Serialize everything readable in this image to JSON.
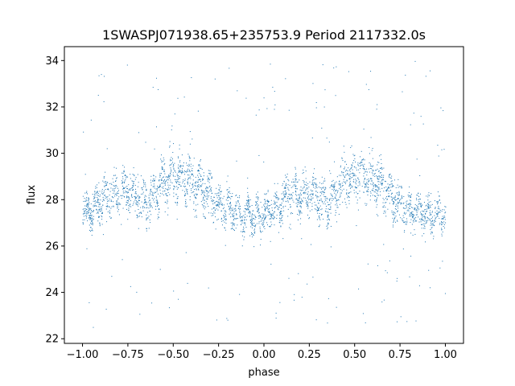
{
  "chart_data": {
    "type": "scatter",
    "title": "1SWASPJ071938.65+235753.9 Period 2117332.0s",
    "xlabel": "phase",
    "ylabel": "flux",
    "xlim": [
      -1.1,
      1.1
    ],
    "ylim": [
      21.8,
      34.6
    ],
    "x_ticks": [
      -1.0,
      -0.75,
      -0.5,
      -0.25,
      0.0,
      0.25,
      0.5,
      0.75,
      1.0
    ],
    "x_tick_labels": [
      "−1.00",
      "−0.75",
      "−0.50",
      "−0.25",
      "0.00",
      "0.25",
      "0.50",
      "0.75",
      "1.00"
    ],
    "y_ticks": [
      22,
      24,
      26,
      28,
      30,
      32,
      34
    ],
    "y_tick_labels": [
      "22",
      "24",
      "26",
      "28",
      "30",
      "32",
      "34"
    ],
    "grid": false,
    "legend": "none",
    "series_color": "#1f77b4",
    "marker_size_note": "tiny points, phase-folded light curve repeated twice (phase -1 to 1)",
    "profile": {
      "phase": [
        0.0,
        0.05,
        0.1,
        0.15,
        0.2,
        0.25,
        0.3,
        0.35,
        0.4,
        0.45,
        0.5,
        0.55,
        0.6,
        0.65,
        0.7,
        0.75,
        0.8,
        0.85,
        0.9,
        0.95,
        1.0
      ],
      "flux_median": [
        27.4,
        27.5,
        28.0,
        28.3,
        28.1,
        28.4,
        28.2,
        27.8,
        28.3,
        28.9,
        29.0,
        29.1,
        28.8,
        28.6,
        28.2,
        27.8,
        27.6,
        27.5,
        27.4,
        27.3,
        27.4
      ],
      "flux_spread": [
        0.9,
        1.0,
        1.1,
        1.2,
        1.0,
        1.3,
        1.2,
        1.1,
        1.3,
        1.4,
        1.3,
        1.3,
        1.3,
        1.2,
        1.1,
        1.0,
        1.0,
        0.9,
        1.0,
        1.0,
        0.9
      ]
    },
    "flux_range_observed": [
      22.5,
      34.0
    ]
  }
}
